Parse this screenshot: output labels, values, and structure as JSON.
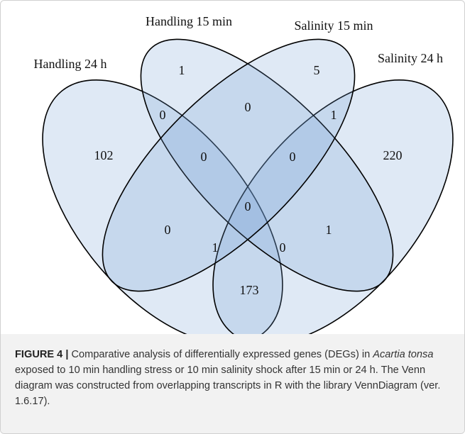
{
  "sets": [
    "Handling 15 min",
    "Salinity 15 min",
    "Handling 24 h",
    "Salinity 24 h"
  ],
  "regions": [
    102,
    1,
    5,
    220,
    0,
    0,
    1,
    0,
    0,
    0,
    0,
    1,
    1,
    0,
    173
  ],
  "caption": {
    "label": "FIGURE 4 |",
    "text_1": " Comparative analysis of differentially expressed genes (DEGs) in ",
    "species": "Acartia tonsa",
    "text_2": " exposed to 10 min handling stress or 10 min salinity shock after 15 min or 24 h. The Venn diagram was constructed from overlapping transcripts in R with the library VennDiagram (ver. 1.6.17)."
  }
}
